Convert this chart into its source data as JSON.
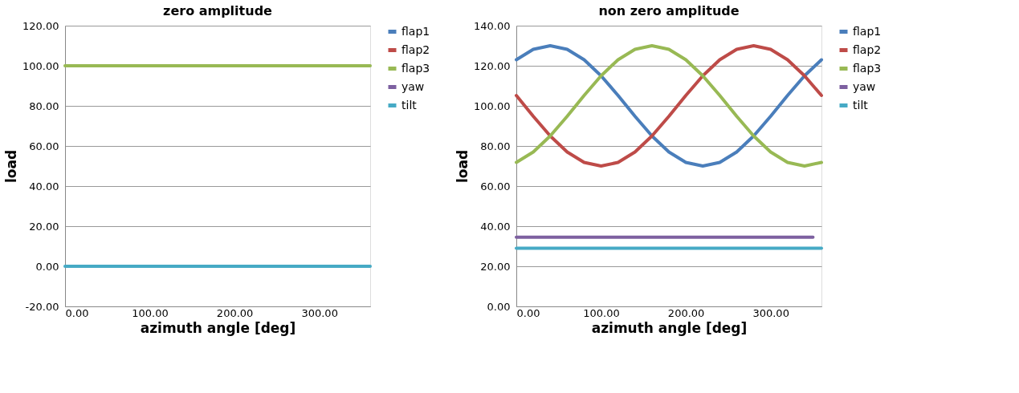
{
  "chart_data": [
    {
      "type": "line",
      "title": "zero amplitude",
      "xlabel": "azimuth angle [deg]",
      "ylabel": "load",
      "grid": "y",
      "legend": "right",
      "line_style": "solid",
      "marker": "none",
      "xlim": [
        0,
        360
      ],
      "xticks": [
        {
          "value": 0,
          "label": "0.00"
        },
        {
          "value": 100,
          "label": "100.00"
        },
        {
          "value": 200,
          "label": "200.00"
        },
        {
          "value": 300,
          "label": "300.00"
        }
      ],
      "ylim": [
        -20,
        120
      ],
      "yticks": [
        {
          "value": -20,
          "label": "-20.00"
        },
        {
          "value": 0,
          "label": "0.00"
        },
        {
          "value": 20,
          "label": "20.00"
        },
        {
          "value": 40,
          "label": "40.00"
        },
        {
          "value": 60,
          "label": "60.00"
        },
        {
          "value": 80,
          "label": "80.00"
        },
        {
          "value": 100,
          "label": "100.00"
        },
        {
          "value": 120,
          "label": "120.00"
        }
      ],
      "series": [
        {
          "name": "flap1",
          "color": "#4a7ebb"
        },
        {
          "name": "flap2",
          "color": "#be4b48"
        },
        {
          "name": "flap3",
          "color": "#98b954",
          "x": [
            0,
            360
          ],
          "values": [
            100,
            100
          ]
        },
        {
          "name": "yaw",
          "color": "#7d60a0"
        },
        {
          "name": "tilt",
          "color": "#46aac5",
          "x": [
            0,
            360
          ],
          "values": [
            0,
            0
          ]
        }
      ]
    },
    {
      "type": "line",
      "title": "non zero amplitude",
      "xlabel": "azimuth angle [deg]",
      "ylabel": "load",
      "grid": "y",
      "legend": "right",
      "line_style": "solid",
      "marker": "none",
      "xlim": [
        0,
        360
      ],
      "xticks": [
        {
          "value": 0,
          "label": "0.00"
        },
        {
          "value": 100,
          "label": "100.00"
        },
        {
          "value": 200,
          "label": "200.00"
        },
        {
          "value": 300,
          "label": "300.00"
        }
      ],
      "ylim": [
        0,
        140
      ],
      "yticks": [
        {
          "value": 0,
          "label": "0.00"
        },
        {
          "value": 20,
          "label": "20.00"
        },
        {
          "value": 40,
          "label": "40.00"
        },
        {
          "value": 60,
          "label": "60.00"
        },
        {
          "value": 80,
          "label": "80.00"
        },
        {
          "value": 100,
          "label": "100.00"
        },
        {
          "value": 120,
          "label": "120.00"
        },
        {
          "value": 140,
          "label": "140.00"
        }
      ],
      "series": [
        {
          "name": "flap1",
          "color": "#4a7ebb",
          "x": [
            0,
            20,
            40,
            60,
            80,
            100,
            120,
            140,
            160,
            180,
            200,
            220,
            240,
            260,
            280,
            300,
            320,
            340,
            360
          ],
          "values": [
            123,
            128.2,
            130,
            128.2,
            123,
            115,
            105.2,
            94.8,
            85,
            77,
            71.8,
            70,
            71.8,
            77,
            85,
            94.8,
            105.2,
            115,
            123
          ]
        },
        {
          "name": "flap2",
          "color": "#be4b48",
          "x": [
            0,
            20,
            40,
            60,
            80,
            100,
            120,
            140,
            160,
            180,
            200,
            220,
            240,
            260,
            280,
            300,
            320,
            340,
            360
          ],
          "values": [
            105.2,
            94.8,
            85,
            77,
            71.8,
            70,
            71.8,
            77,
            85,
            94.8,
            105.2,
            115,
            123,
            128.2,
            130,
            128.2,
            123,
            115,
            105.2
          ]
        },
        {
          "name": "flap3",
          "color": "#98b954",
          "x": [
            0,
            20,
            40,
            60,
            80,
            100,
            120,
            140,
            160,
            180,
            200,
            220,
            240,
            260,
            280,
            300,
            320,
            340,
            360
          ],
          "values": [
            71.8,
            77,
            85,
            94.8,
            105.2,
            115,
            123,
            128.2,
            130,
            128.2,
            123,
            115,
            105.2,
            94.8,
            85,
            77,
            71.8,
            70,
            71.8
          ]
        },
        {
          "name": "yaw",
          "color": "#7d60a0",
          "x": [
            0,
            350
          ],
          "values": [
            34.5,
            34.5
          ]
        },
        {
          "name": "tilt",
          "color": "#46aac5",
          "x": [
            0,
            360
          ],
          "values": [
            29,
            29
          ]
        }
      ]
    }
  ]
}
